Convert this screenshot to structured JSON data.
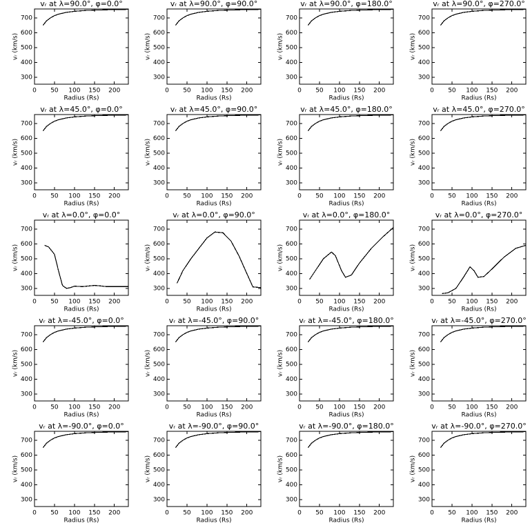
{
  "chart_data": [
    {
      "type": "line",
      "title": "vᵣ at λ=90.0°, φ=0.0°",
      "xlabel": "Radius (Rs)",
      "ylabel": "vᵣ (km/s)",
      "color": "#000000",
      "x": [
        21.5,
        30,
        40,
        50,
        60,
        80,
        100,
        130,
        160,
        200,
        235
      ],
      "values": [
        650,
        680,
        700,
        715,
        725,
        737,
        744,
        750,
        753,
        756,
        757
      ],
      "xlim": [
        0,
        235
      ],
      "ylim": [
        253,
        760
      ],
      "xticks": [
        0,
        50,
        100,
        150,
        200
      ],
      "yticks": [
        300,
        400,
        500,
        600,
        700
      ]
    },
    {
      "type": "line",
      "title": "vᵣ at λ=90.0°, φ=90.0°",
      "xlabel": "Radius (Rs)",
      "ylabel": "vᵣ (km/s)",
      "color": "#000000",
      "x": [
        21.5,
        30,
        40,
        50,
        60,
        80,
        100,
        130,
        160,
        200,
        235
      ],
      "values": [
        650,
        680,
        700,
        715,
        725,
        737,
        744,
        750,
        753,
        756,
        757
      ],
      "xlim": [
        0,
        235
      ],
      "ylim": [
        253,
        760
      ],
      "xticks": [
        0,
        50,
        100,
        150,
        200
      ],
      "yticks": [
        300,
        400,
        500,
        600,
        700
      ]
    },
    {
      "type": "line",
      "title": "vᵣ at λ=90.0°, φ=180.0°",
      "xlabel": "Radius (Rs)",
      "ylabel": "vᵣ (km/s)",
      "color": "#000000",
      "x": [
        21.5,
        30,
        40,
        50,
        60,
        80,
        100,
        130,
        160,
        200,
        235
      ],
      "values": [
        650,
        680,
        700,
        715,
        725,
        737,
        744,
        750,
        753,
        756,
        757
      ],
      "xlim": [
        0,
        235
      ],
      "ylim": [
        253,
        760
      ],
      "xticks": [
        0,
        50,
        100,
        150,
        200
      ],
      "yticks": [
        300,
        400,
        500,
        600,
        700
      ]
    },
    {
      "type": "line",
      "title": "vᵣ at λ=90.0°, φ=270.0°",
      "xlabel": "Radius (Rs)",
      "ylabel": "vᵣ (km/s)",
      "color": "#000000",
      "x": [
        21.5,
        30,
        40,
        50,
        60,
        80,
        100,
        130,
        160,
        200,
        235
      ],
      "values": [
        650,
        680,
        700,
        715,
        725,
        737,
        744,
        750,
        753,
        756,
        757
      ],
      "xlim": [
        0,
        235
      ],
      "ylim": [
        253,
        760
      ],
      "xticks": [
        0,
        50,
        100,
        150,
        200
      ],
      "yticks": [
        300,
        400,
        500,
        600,
        700
      ]
    },
    {
      "type": "line",
      "title": "vᵣ at λ=45.0°, φ=0.0°",
      "xlabel": "Radius (Rs)",
      "ylabel": "vᵣ (km/s)",
      "color": "#000000",
      "x": [
        21.5,
        30,
        40,
        50,
        60,
        80,
        100,
        130,
        160,
        200,
        235
      ],
      "values": [
        650,
        680,
        700,
        715,
        725,
        737,
        744,
        750,
        753,
        756,
        757
      ],
      "xlim": [
        0,
        235
      ],
      "ylim": [
        253,
        760
      ],
      "xticks": [
        0,
        50,
        100,
        150,
        200
      ],
      "yticks": [
        300,
        400,
        500,
        600,
        700
      ]
    },
    {
      "type": "line",
      "title": "vᵣ at λ=45.0°, φ=90.0°",
      "xlabel": "Radius (Rs)",
      "ylabel": "vᵣ (km/s)",
      "color": "#000000",
      "x": [
        21.5,
        30,
        40,
        50,
        60,
        80,
        100,
        130,
        160,
        200,
        235
      ],
      "values": [
        650,
        680,
        700,
        715,
        725,
        737,
        744,
        750,
        753,
        756,
        757
      ],
      "xlim": [
        0,
        235
      ],
      "ylim": [
        253,
        760
      ],
      "xticks": [
        0,
        50,
        100,
        150,
        200
      ],
      "yticks": [
        300,
        400,
        500,
        600,
        700
      ]
    },
    {
      "type": "line",
      "title": "vᵣ at λ=45.0°, φ=180.0°",
      "xlabel": "Radius (Rs)",
      "ylabel": "vᵣ (km/s)",
      "color": "#000000",
      "x": [
        21.5,
        30,
        40,
        50,
        60,
        80,
        100,
        130,
        160,
        200,
        235
      ],
      "values": [
        650,
        680,
        700,
        715,
        725,
        737,
        744,
        750,
        753,
        756,
        757
      ],
      "xlim": [
        0,
        235
      ],
      "ylim": [
        253,
        760
      ],
      "xticks": [
        0,
        50,
        100,
        150,
        200
      ],
      "yticks": [
        300,
        400,
        500,
        600,
        700
      ]
    },
    {
      "type": "line",
      "title": "vᵣ at λ=45.0°, φ=270.0°",
      "xlabel": "Radius (Rs)",
      "ylabel": "vᵣ (km/s)",
      "color": "#000000",
      "x": [
        21.5,
        30,
        40,
        50,
        60,
        80,
        100,
        130,
        160,
        200,
        235
      ],
      "values": [
        650,
        680,
        700,
        715,
        725,
        737,
        744,
        750,
        753,
        756,
        757
      ],
      "xlim": [
        0,
        235
      ],
      "ylim": [
        253,
        760
      ],
      "xticks": [
        0,
        50,
        100,
        150,
        200
      ],
      "yticks": [
        300,
        400,
        500,
        600,
        700
      ]
    },
    {
      "type": "line",
      "title": "vᵣ at λ=0.0°, φ=0.0°",
      "xlabel": "Radius (Rs)",
      "ylabel": "vᵣ (km/s)",
      "color": "#000000",
      "x": [
        25,
        35,
        50,
        60,
        70,
        80,
        90,
        100,
        120,
        150,
        160,
        180,
        235
      ],
      "values": [
        590,
        580,
        530,
        420,
        320,
        300,
        305,
        315,
        312,
        320,
        318,
        312,
        312
      ],
      "xlim": [
        0,
        235
      ],
      "ylim": [
        253,
        760
      ],
      "xticks": [
        0,
        50,
        100,
        150,
        200
      ],
      "yticks": [
        300,
        400,
        500,
        600,
        700
      ]
    },
    {
      "type": "line",
      "title": "vᵣ at λ=0.0°, φ=90.0°",
      "xlabel": "Radius (Rs)",
      "ylabel": "vᵣ (km/s)",
      "color": "#000000",
      "x": [
        25,
        40,
        60,
        80,
        100,
        120,
        140,
        160,
        180,
        200,
        215,
        235
      ],
      "values": [
        335,
        420,
        500,
        570,
        640,
        680,
        675,
        620,
        520,
        400,
        310,
        305
      ],
      "xlim": [
        0,
        235
      ],
      "ylim": [
        253,
        760
      ],
      "xticks": [
        0,
        50,
        100,
        150,
        200
      ],
      "yticks": [
        300,
        400,
        500,
        600,
        700
      ]
    },
    {
      "type": "line",
      "title": "vᵣ at λ=0.0°, φ=180.0°",
      "xlabel": "Radius (Rs)",
      "ylabel": "vᵣ (km/s)",
      "color": "#000000",
      "x": [
        25,
        40,
        60,
        80,
        90,
        105,
        115,
        130,
        150,
        180,
        210,
        235
      ],
      "values": [
        360,
        420,
        500,
        545,
        520,
        420,
        375,
        390,
        470,
        570,
        650,
        710
      ],
      "xlim": [
        0,
        235
      ],
      "ylim": [
        253,
        760
      ],
      "xticks": [
        0,
        50,
        100,
        150,
        200
      ],
      "yticks": [
        300,
        400,
        500,
        600,
        700
      ]
    },
    {
      "type": "line",
      "title": "vᵣ at λ=0.0°, φ=270.0°",
      "xlabel": "Radius (Rs)",
      "ylabel": "vᵣ (km/s)",
      "color": "#000000",
      "x": [
        25,
        40,
        60,
        80,
        95,
        105,
        115,
        130,
        150,
        180,
        210,
        235
      ],
      "values": [
        265,
        270,
        300,
        380,
        445,
        420,
        375,
        380,
        430,
        510,
        570,
        590
      ],
      "xlim": [
        0,
        235
      ],
      "ylim": [
        253,
        760
      ],
      "xticks": [
        0,
        50,
        100,
        150,
        200
      ],
      "yticks": [
        300,
        400,
        500,
        600,
        700
      ]
    },
    {
      "type": "line",
      "title": "vᵣ at λ=-45.0°, φ=0.0°",
      "xlabel": "Radius (Rs)",
      "ylabel": "vᵣ (km/s)",
      "color": "#000000",
      "x": [
        21.5,
        30,
        40,
        50,
        60,
        80,
        100,
        130,
        160,
        200,
        235
      ],
      "values": [
        650,
        680,
        700,
        715,
        725,
        737,
        744,
        750,
        753,
        756,
        757
      ],
      "xlim": [
        0,
        235
      ],
      "ylim": [
        253,
        760
      ],
      "xticks": [
        0,
        50,
        100,
        150,
        200
      ],
      "yticks": [
        300,
        400,
        500,
        600,
        700
      ]
    },
    {
      "type": "line",
      "title": "vᵣ at λ=-45.0°, φ=90.0°",
      "xlabel": "Radius (Rs)",
      "ylabel": "vᵣ (km/s)",
      "color": "#000000",
      "x": [
        21.5,
        30,
        40,
        50,
        60,
        80,
        100,
        130,
        160,
        200,
        235
      ],
      "values": [
        650,
        680,
        700,
        715,
        725,
        737,
        744,
        750,
        753,
        756,
        757
      ],
      "xlim": [
        0,
        235
      ],
      "ylim": [
        253,
        760
      ],
      "xticks": [
        0,
        50,
        100,
        150,
        200
      ],
      "yticks": [
        300,
        400,
        500,
        600,
        700
      ]
    },
    {
      "type": "line",
      "title": "vᵣ at λ=-45.0°, φ=180.0°",
      "xlabel": "Radius (Rs)",
      "ylabel": "vᵣ (km/s)",
      "color": "#000000",
      "x": [
        21.5,
        30,
        40,
        50,
        60,
        80,
        100,
        130,
        160,
        200,
        235
      ],
      "values": [
        650,
        680,
        700,
        715,
        725,
        737,
        744,
        750,
        753,
        756,
        757
      ],
      "xlim": [
        0,
        235
      ],
      "ylim": [
        253,
        760
      ],
      "xticks": [
        0,
        50,
        100,
        150,
        200
      ],
      "yticks": [
        300,
        400,
        500,
        600,
        700
      ]
    },
    {
      "type": "line",
      "title": "vᵣ at λ=-45.0°, φ=270.0°",
      "xlabel": "Radius (Rs)",
      "ylabel": "vᵣ (km/s)",
      "color": "#000000",
      "x": [
        21.5,
        30,
        40,
        50,
        60,
        80,
        100,
        130,
        160,
        200,
        235
      ],
      "values": [
        650,
        680,
        700,
        715,
        725,
        737,
        744,
        750,
        753,
        756,
        757
      ],
      "xlim": [
        0,
        235
      ],
      "ylim": [
        253,
        760
      ],
      "xticks": [
        0,
        50,
        100,
        150,
        200
      ],
      "yticks": [
        300,
        400,
        500,
        600,
        700
      ]
    },
    {
      "type": "line",
      "title": "vᵣ at λ=-90.0°, φ=0.0°",
      "xlabel": "Radius (Rs)",
      "ylabel": "vᵣ (km/s)",
      "color": "#000000",
      "x": [
        21.5,
        30,
        40,
        50,
        60,
        80,
        100,
        130,
        160,
        200,
        235
      ],
      "values": [
        650,
        680,
        700,
        715,
        725,
        737,
        744,
        750,
        753,
        756,
        757
      ],
      "xlim": [
        0,
        235
      ],
      "ylim": [
        253,
        760
      ],
      "xticks": [
        0,
        50,
        100,
        150,
        200
      ],
      "yticks": [
        300,
        400,
        500,
        600,
        700
      ]
    },
    {
      "type": "line",
      "title": "vᵣ at λ=-90.0°, φ=90.0°",
      "xlabel": "Radius (Rs)",
      "ylabel": "vᵣ (km/s)",
      "color": "#000000",
      "x": [
        21.5,
        30,
        40,
        50,
        60,
        80,
        100,
        130,
        160,
        200,
        235
      ],
      "values": [
        650,
        680,
        700,
        715,
        725,
        737,
        744,
        750,
        753,
        756,
        757
      ],
      "xlim": [
        0,
        235
      ],
      "ylim": [
        253,
        760
      ],
      "xticks": [
        0,
        50,
        100,
        150,
        200
      ],
      "yticks": [
        300,
        400,
        500,
        600,
        700
      ]
    },
    {
      "type": "line",
      "title": "vᵣ at λ=-90.0°, φ=180.0°",
      "xlabel": "Radius (Rs)",
      "ylabel": "vᵣ (km/s)",
      "color": "#000000",
      "x": [
        21.5,
        30,
        40,
        50,
        60,
        80,
        100,
        130,
        160,
        200,
        235
      ],
      "values": [
        650,
        680,
        700,
        715,
        725,
        737,
        744,
        750,
        753,
        756,
        757
      ],
      "xlim": [
        0,
        235
      ],
      "ylim": [
        253,
        760
      ],
      "xticks": [
        0,
        50,
        100,
        150,
        200
      ],
      "yticks": [
        300,
        400,
        500,
        600,
        700
      ]
    },
    {
      "type": "line",
      "title": "vᵣ at λ=-90.0°, φ=270.0°",
      "xlabel": "Radius (Rs)",
      "ylabel": "vᵣ (km/s)",
      "color": "#000000",
      "x": [
        21.5,
        30,
        40,
        50,
        60,
        80,
        100,
        130,
        160,
        200,
        235
      ],
      "values": [
        650,
        680,
        700,
        715,
        725,
        737,
        744,
        750,
        753,
        756,
        757
      ],
      "xlim": [
        0,
        235
      ],
      "ylim": [
        253,
        760
      ],
      "xticks": [
        0,
        50,
        100,
        150,
        200
      ],
      "yticks": [
        300,
        400,
        500,
        600,
        700
      ]
    }
  ]
}
